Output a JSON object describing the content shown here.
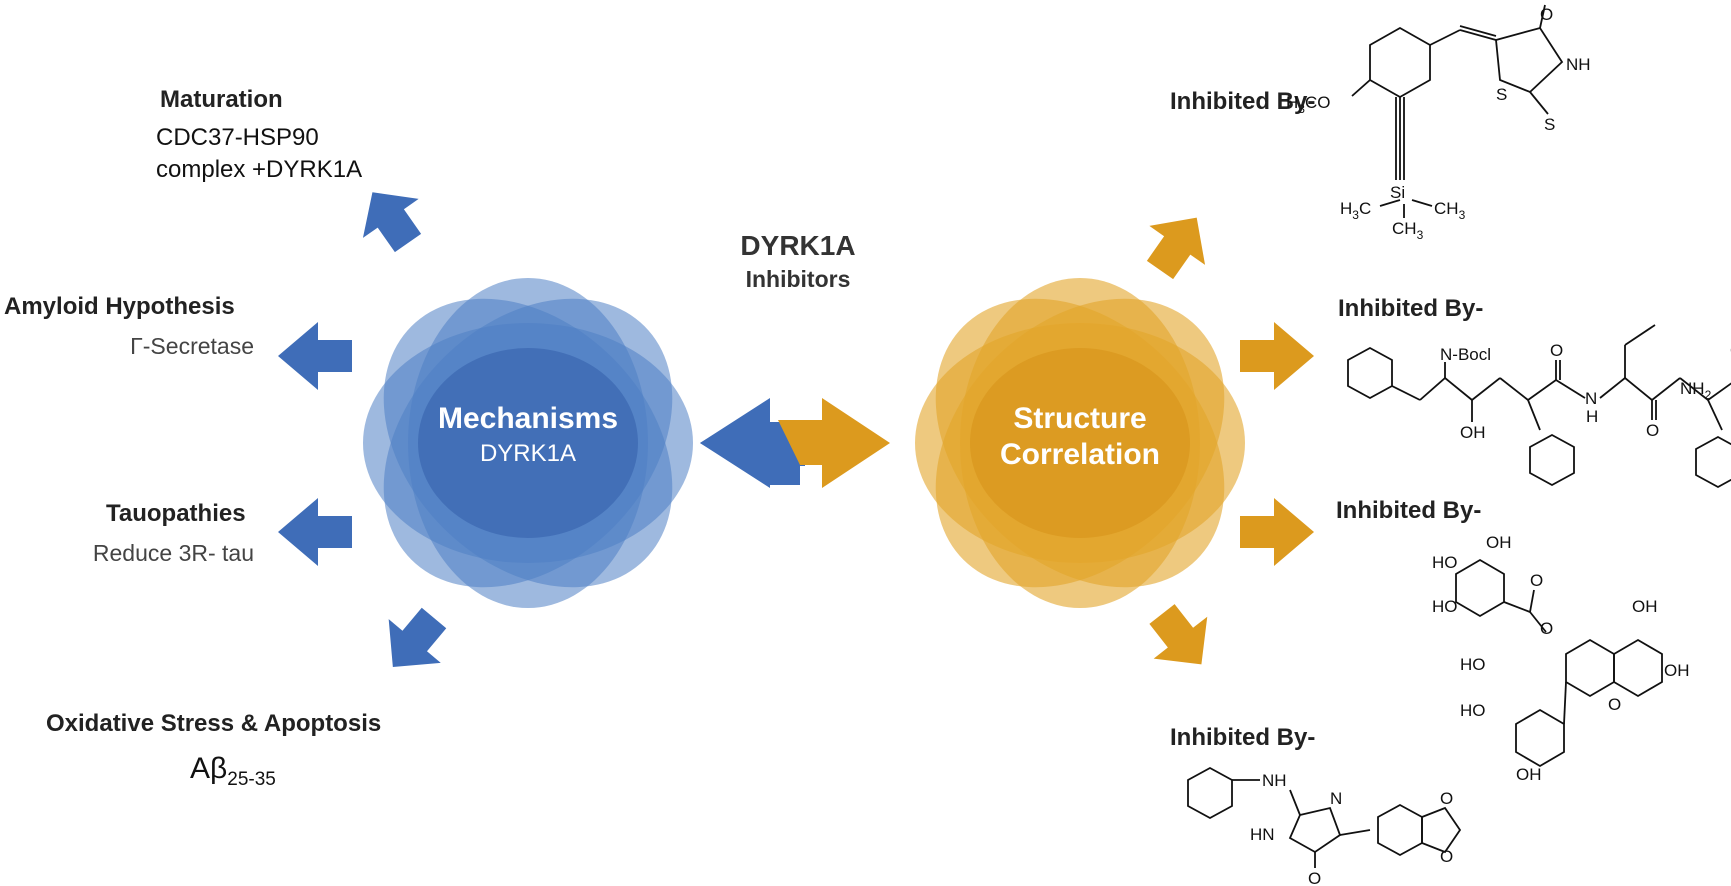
{
  "title": "DYRK1A",
  "subtitle": "Inhibitors",
  "colors": {
    "blue": "#3f6db8",
    "blue_light": "#7fa6d6",
    "orange": "#dc9a1e",
    "orange_light": "#efc25a"
  },
  "left_hub": {
    "line1": "Mechanisms",
    "line2": "DYRK1A"
  },
  "right_hub": {
    "line1": "Structure",
    "line2": "Correlation"
  },
  "mechanisms": [
    {
      "title": "Maturation",
      "detail1": "CDC37-HSP90",
      "detail2": "complex +DYRK1A"
    },
    {
      "title": "Amyloid Hypothesis",
      "detail": "Γ-Secretase"
    },
    {
      "title": "Tauopathies",
      "detail": "Reduce 3R- tau"
    },
    {
      "title": "Oxidative Stress  & Apoptosis",
      "detail_main": "Aβ",
      "detail_sub": "25-35"
    }
  ],
  "inhibitors": [
    {
      "label": "Inhibited By-"
    },
    {
      "label": "Inhibited By-"
    },
    {
      "label": "Inhibited By-"
    },
    {
      "label": "Inhibited By-"
    }
  ],
  "chem": {
    "c1": {
      "h3co_a": "H",
      "h3co_b": "3",
      "h3co_c": "CO",
      "o": "O",
      "nh": "NH",
      "s1": "S",
      "s2": "S",
      "si": "Si",
      "me1a": "H",
      "me1b": "3",
      "me1c": "C",
      "me2a": "CH",
      "me2b": "3",
      "me3a": "CH",
      "me3b": "3"
    },
    "c2": {
      "nboc": "N-Bocl",
      "oh": "OH",
      "o1": "O",
      "nh": "N",
      "h": "H",
      "o2": "O",
      "o3": "O",
      "nh2a": "NH",
      "nh2b": "2"
    },
    "c3": {
      "ho1": "HO",
      "oh1": "OH",
      "ho2": "HO",
      "o1": "O",
      "o2": "O",
      "oh2": "OH",
      "o3": "O",
      "ho3": "HO",
      "oh3": "OH",
      "ho4": "HO",
      "oh4": "OH"
    },
    "c4": {
      "nh": "NH",
      "n": "N",
      "hn": "HN",
      "o": "O",
      "o1": "O",
      "o2": "O"
    }
  }
}
